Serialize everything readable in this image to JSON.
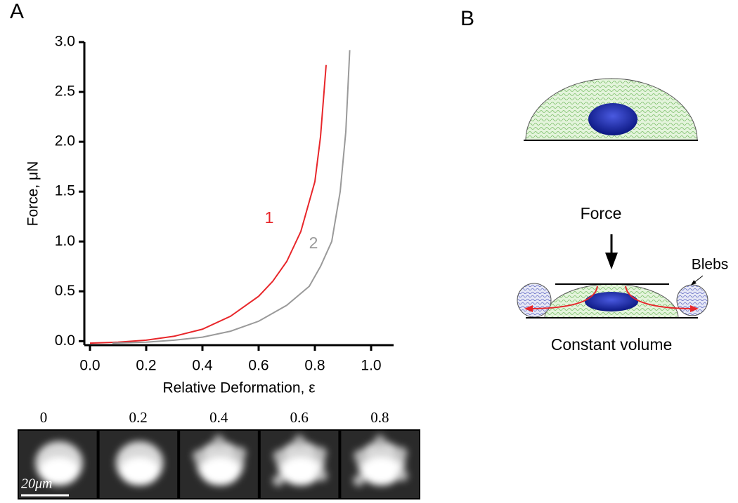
{
  "panels": {
    "a": "A",
    "b": "B"
  },
  "chart_data": {
    "type": "line",
    "xlabel": "Relative Deformation, ε",
    "ylabel": "Force, μN",
    "xlim": [
      -0.02,
      1.08
    ],
    "ylim": [
      -0.04,
      3.0
    ],
    "xticks": [
      {
        "value": 0,
        "label": "0.0"
      },
      0.2,
      0.4,
      0.6,
      0.8,
      {
        "value": 1,
        "label": "1.0"
      }
    ],
    "yticks": [
      {
        "value": 0,
        "label": "0.0"
      },
      0.5,
      {
        "value": 1,
        "label": "1.0"
      },
      1.5,
      {
        "value": 2,
        "label": "2.0"
      },
      2.5,
      {
        "value": 3,
        "label": "3.0"
      }
    ],
    "grid": false,
    "series": [
      {
        "name": "1",
        "color": "#e8262a",
        "x": [
          0,
          0.1,
          0.2,
          0.3,
          0.4,
          0.5,
          0.6,
          0.65,
          0.7,
          0.75,
          0.8,
          0.82,
          0.84
        ],
        "values": [
          -0.02,
          -0.01,
          0.01,
          0.05,
          0.12,
          0.25,
          0.45,
          0.6,
          0.8,
          1.1,
          1.6,
          2.05,
          2.77
        ]
      },
      {
        "name": "2",
        "color": "#9a9a9a",
        "x": [
          0.08,
          0.2,
          0.3,
          0.4,
          0.5,
          0.6,
          0.7,
          0.78,
          0.82,
          0.86,
          0.89,
          0.91,
          0.924
        ],
        "values": [
          -0.02,
          -0.01,
          0.01,
          0.04,
          0.1,
          0.2,
          0.36,
          0.55,
          0.75,
          1.0,
          1.5,
          2.1,
          2.92
        ]
      }
    ]
  },
  "image_strip": {
    "labels": [
      "0",
      "0.2",
      "0.4",
      "0.6",
      "0.8"
    ],
    "scale_bar": "20μm"
  },
  "diagram": {
    "force": "Force",
    "blebs": "Blebs",
    "caption": "Constant volume"
  }
}
